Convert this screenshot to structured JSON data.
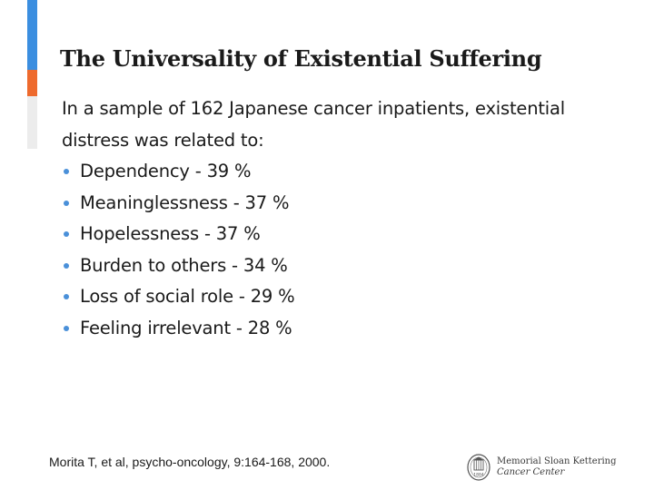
{
  "slide": {
    "title": "The Universality of Existential Suffering",
    "intro": "In a sample of 162 Japanese cancer inpatients, existential distress was related to:",
    "bullets": [
      "Dependency - 39 %",
      "Meaninglessness - 37 %",
      "Hopelessness - 37 %",
      "Burden to others - 34 %",
      "Loss of social role - 29 %",
      "Feeling irrelevant - 28 %"
    ],
    "citation": "Morita T, et al, psycho-oncology, 9:164-168, 2000.",
    "logo": {
      "line1": "Memorial Sloan Kettering",
      "line2": "Cancer Center",
      "seal_year": "1884",
      "icon": "msk-seal-icon"
    }
  },
  "colors": {
    "accent_blue": "#3b8ee0",
    "accent_orange": "#ee6a2d",
    "accent_grey": "#ececec",
    "bullet": "#4a90d9",
    "text": "#1a1a1a"
  }
}
